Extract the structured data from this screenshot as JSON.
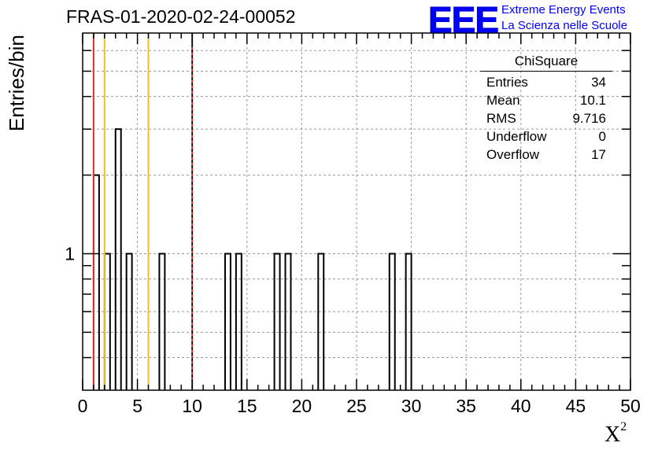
{
  "window": {
    "title": "FRAS-01-2020-02-24-00052"
  },
  "logo": {
    "mark": "EEE",
    "line1": "Extreme Energy Events",
    "line2": "La Scienza nelle Scuole",
    "color": "#0000ff"
  },
  "stats_box": {
    "title": "ChiSquare",
    "rows": [
      {
        "label": "Entries",
        "value": "34"
      },
      {
        "label": "Mean",
        "value": "10.1"
      },
      {
        "label": "RMS",
        "value": "9.716"
      },
      {
        "label": "Underflow",
        "value": "0"
      },
      {
        "label": "Overflow",
        "value": "17"
      }
    ]
  },
  "chart_data": {
    "type": "bar",
    "title": "FRAS-01-2020-02-24-00052",
    "xlabel": "X",
    "xlabel_superscript": "2",
    "ylabel": "Entries/bin",
    "xlim": [
      0,
      50
    ],
    "ylim": [
      0.3,
      7
    ],
    "y_scale": "log",
    "grid": true,
    "bin_width": 0.5,
    "x_ticks": [
      0,
      5,
      10,
      15,
      20,
      25,
      30,
      35,
      40,
      45,
      50
    ],
    "x_tick_labels": [
      "0",
      "5",
      "10",
      "15",
      "20",
      "25",
      "30",
      "35",
      "40",
      "45",
      "50"
    ],
    "y_tick_labels": [
      {
        "value": 1,
        "label": "1"
      }
    ],
    "bins": [
      {
        "x": 1.0,
        "count": 2
      },
      {
        "x": 2.0,
        "count": 1
      },
      {
        "x": 3.0,
        "count": 3
      },
      {
        "x": 4.0,
        "count": 1
      },
      {
        "x": 7.0,
        "count": 1
      },
      {
        "x": 13.0,
        "count": 1
      },
      {
        "x": 14.0,
        "count": 1
      },
      {
        "x": 17.5,
        "count": 1
      },
      {
        "x": 18.5,
        "count": 1
      },
      {
        "x": 21.5,
        "count": 1
      },
      {
        "x": 28.0,
        "count": 1
      },
      {
        "x": 29.5,
        "count": 1
      }
    ],
    "vertical_lines": [
      {
        "x": 1.0,
        "color": "#e8302a",
        "style": "solid"
      },
      {
        "x": 2.0,
        "color": "#f0c020",
        "style": "solid"
      },
      {
        "x": 6.0,
        "color": "#f0c020",
        "style": "solid"
      },
      {
        "x": 10.0,
        "color": "#e8302a",
        "style": "solid"
      },
      {
        "x": 10.0,
        "color": "#000000",
        "style": "dashed"
      }
    ],
    "legend": "top-right"
  }
}
